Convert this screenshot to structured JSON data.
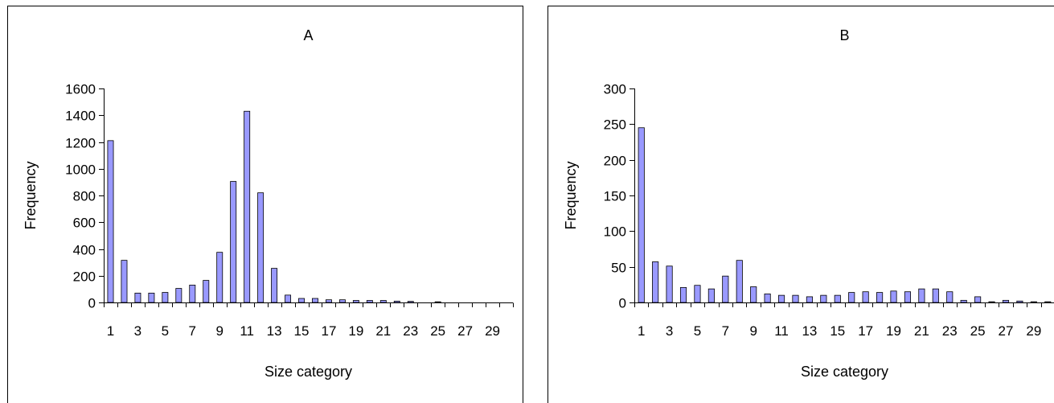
{
  "chart_data": [
    {
      "type": "bar",
      "title": "A",
      "xlabel": "Size category",
      "ylabel": "Frequency",
      "ylim": [
        0,
        1600
      ],
      "yticks": [
        0,
        200,
        400,
        600,
        800,
        1000,
        1200,
        1400,
        1600
      ],
      "categories": [
        1,
        2,
        3,
        4,
        5,
        6,
        7,
        8,
        9,
        10,
        11,
        12,
        13,
        14,
        15,
        16,
        17,
        18,
        19,
        20,
        21,
        22,
        23,
        24,
        25,
        26,
        27,
        28,
        29,
        30
      ],
      "xtick_labels": [
        "1",
        "3",
        "5",
        "7",
        "9",
        "11",
        "13",
        "15",
        "17",
        "19",
        "21",
        "23",
        "25",
        "27",
        "29"
      ],
      "values": [
        1210,
        315,
        70,
        70,
        75,
        105,
        130,
        165,
        375,
        905,
        1430,
        820,
        255,
        55,
        30,
        30,
        20,
        20,
        15,
        15,
        15,
        10,
        8,
        0,
        5,
        0,
        0,
        0,
        0,
        0
      ],
      "bar_color": "#9999ff",
      "grid": false,
      "legend": false
    },
    {
      "type": "bar",
      "title": "B",
      "xlabel": "Size category",
      "ylabel": "Frequency",
      "ylim": [
        0,
        300
      ],
      "yticks": [
        0,
        50,
        100,
        150,
        200,
        250,
        300
      ],
      "categories": [
        1,
        2,
        3,
        4,
        5,
        6,
        7,
        8,
        9,
        10,
        11,
        12,
        13,
        14,
        15,
        16,
        17,
        18,
        19,
        20,
        21,
        22,
        23,
        24,
        25,
        26,
        27,
        28,
        29,
        30
      ],
      "xtick_labels": [
        "1",
        "3",
        "5",
        "7",
        "9",
        "11",
        "13",
        "15",
        "17",
        "19",
        "21",
        "23",
        "25",
        "27",
        "29"
      ],
      "values": [
        245,
        57,
        51,
        21,
        24,
        19,
        37,
        59,
        22,
        12,
        10,
        10,
        8,
        10,
        10,
        14,
        15,
        14,
        16,
        15,
        19,
        19,
        15,
        3,
        8,
        1,
        3,
        2,
        1,
        1
      ],
      "bar_color": "#9999ff",
      "grid": false,
      "legend": false
    }
  ]
}
